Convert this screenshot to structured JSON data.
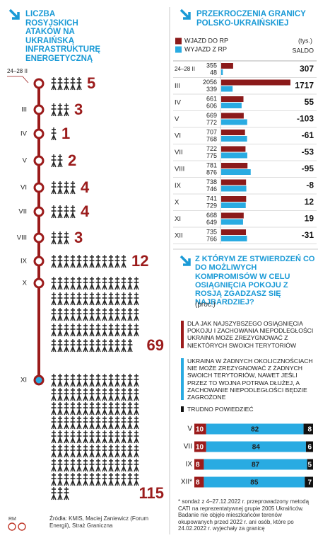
{
  "chart_data": [
    {
      "type": "pictogram",
      "title": "LICZBA ROSYJSKICH ATAKÓW NA UKRAIŃSKĄ INFRASTRUKTURĘ ENERGETYCZNĄ",
      "categories": [
        "24–28 II",
        "III",
        "IV",
        "V",
        "VI",
        "VII",
        "VIII",
        "IX",
        "X",
        "XI"
      ],
      "values": [
        5,
        3,
        1,
        2,
        4,
        4,
        3,
        12,
        69,
        115
      ],
      "color": "#9b1b1b",
      "icon_color": "#222222"
    },
    {
      "type": "bar",
      "title": "PRZEKROCZENIA GRANICY POLSKO-UKRAIŃSKIEJ",
      "unit": "(tys.)",
      "balance_label": "SALDO",
      "categories": [
        "24–28 II",
        "III",
        "IV",
        "V",
        "VI",
        "VII",
        "VIII",
        "IX",
        "X",
        "XI",
        "XII"
      ],
      "series": [
        {
          "name": "WJAZD DO RP",
          "color": "#8b1a1a",
          "values": [
            355,
            2056,
            661,
            669,
            707,
            722,
            781,
            738,
            741,
            668,
            735
          ]
        },
        {
          "name": "WYJAZD Z RP",
          "color": "#29abe2",
          "values": [
            48,
            339,
            606,
            772,
            768,
            775,
            876,
            746,
            729,
            649,
            766
          ]
        }
      ],
      "balance": [
        307,
        1717,
        55,
        -103,
        -61,
        -53,
        -95,
        -8,
        12,
        19,
        -31
      ]
    },
    {
      "type": "stacked-bar",
      "title": "Z KTÓRYM ZE STWIERDZEŃ CO DO MOŻLIWYCH KOMPROMISÓW W CELU OSIĄGNIĘCIA POKOJU Z ROSJĄ ZGADZASZ SIĘ NAJBARDZIEJ?",
      "unit": "(proc.)",
      "categories": [
        "V",
        "VII",
        "IX",
        "XII*"
      ],
      "series": [
        {
          "name": "DLA JAK NAJSZYBSZEGO OSIĄGNIĘCIA POKOJU I ZACHOWANIA NIEPODLEGŁOŚCI UKRAINA MOŻE ZREZYGNOWAĆ Z NIEKTÓRYCH SWOICH TERYTORIÓW",
          "color": "#9b1b1b",
          "label_color": "#ffffff",
          "values": [
            10,
            10,
            8,
            8
          ]
        },
        {
          "name": "UKRAINA W ŻADNYCH OKOLICZNOŚCIACH NIE MOŻE ZREZYGNOWAĆ Z ŻADNYCH SWOICH TERYTORIÓW, NAWET JEŚLI PRZEZ TO WOJNA POTRWA DŁUŻEJ, A ZACHOWANIE NIEPODLEGŁOŚCI BĘDZIE ZAGROŻONE",
          "color": "#29abe2",
          "label_color": "#222222",
          "values": [
            82,
            84,
            87,
            85
          ]
        },
        {
          "name": "TRUDNO POWIEDZIEĆ",
          "color": "#111111",
          "label_color": "#ffffff",
          "values": [
            8,
            6,
            5,
            7
          ]
        }
      ],
      "note": "* sondaż z 4–27.12.2022 r. przeprowadzony metodą CATI na reprezentatywnej grupie 2005 Ukraińców. Badanie nie objęło mieszkańców terenów okupowanych przed 2022 r. ani osób, które po 24.02.2022 r. wyjechały za granicę"
    }
  ],
  "sources": "Źródła: KMIS, Maciej Zaniewicz (Forum Energii), Straż Graniczna",
  "logo": "RM"
}
